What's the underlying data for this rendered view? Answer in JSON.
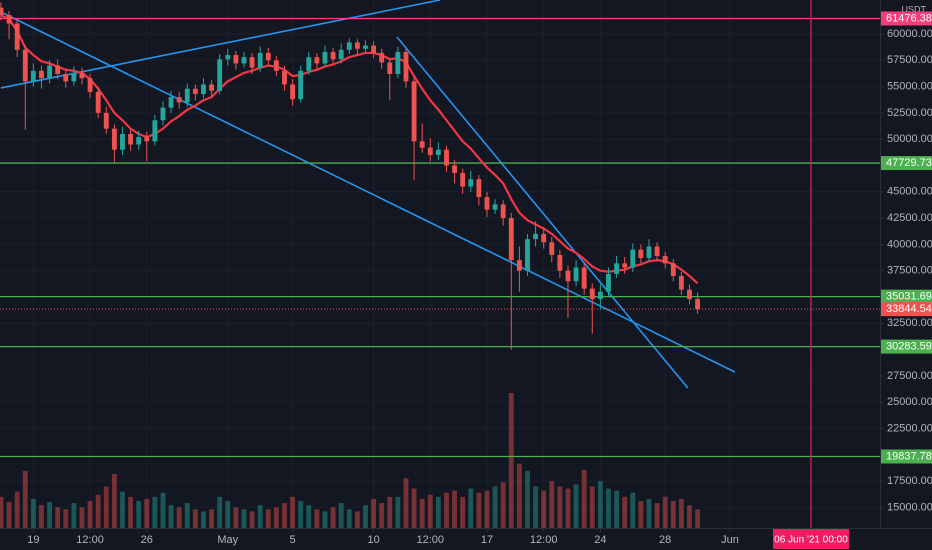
{
  "chart_data": {
    "type": "candlestick",
    "currency": "USDT",
    "x": [
      0,
      0.5,
      1,
      1.5,
      2,
      2.5,
      3,
      3.5,
      4,
      4.5,
      5,
      5.5,
      6,
      6.5,
      7,
      7.5,
      8,
      8.5,
      9,
      9.5,
      10,
      10.5,
      11,
      11.5,
      12,
      12.5,
      13,
      13.5,
      14,
      14.5,
      15,
      15.5,
      16,
      16.5,
      17,
      17.5,
      18,
      18.5,
      19,
      19.5,
      20,
      20.5,
      21,
      21.5,
      22,
      22.5,
      23,
      23.5,
      24,
      24.5,
      25,
      25.5,
      26,
      26.5,
      27,
      27.5,
      28,
      28.5,
      29,
      29.5,
      30,
      30.5,
      31,
      31.5,
      32,
      32.5,
      33,
      33.5,
      34,
      34.5,
      35,
      35.5,
      36,
      36.5,
      37,
      37.5,
      38,
      38.5,
      39,
      39.5,
      40,
      40.5,
      41,
      41.5,
      42,
      42.5,
      43
    ],
    "ohlc": [
      [
        62500,
        63000,
        61300,
        61800
      ],
      [
        61800,
        62200,
        59500,
        61000
      ],
      [
        61000,
        61400,
        57800,
        58500
      ],
      [
        58500,
        59000,
        50900,
        55500
      ],
      [
        55500,
        57200,
        55000,
        56500
      ],
      [
        56500,
        57000,
        54800,
        55800
      ],
      [
        55800,
        57500,
        55300,
        57000
      ],
      [
        57000,
        57600,
        55700,
        56200
      ],
      [
        56200,
        56700,
        54900,
        55500
      ],
      [
        55500,
        56900,
        55100,
        56300
      ],
      [
        56300,
        56800,
        55200,
        55800
      ],
      [
        55800,
        56200,
        53900,
        54500
      ],
      [
        54500,
        55000,
        52000,
        52500
      ],
      [
        52500,
        53100,
        50500,
        51000
      ],
      [
        51000,
        51400,
        47800,
        49000
      ],
      [
        49000,
        51200,
        48500,
        50500
      ],
      [
        50500,
        51000,
        48900,
        49500
      ],
      [
        49500,
        50800,
        49000,
        50200
      ],
      [
        50200,
        50700,
        47900,
        49800
      ],
      [
        49800,
        52300,
        49400,
        51800
      ],
      [
        51800,
        53600,
        51300,
        53000
      ],
      [
        53000,
        54600,
        52500,
        54000
      ],
      [
        54000,
        54500,
        52900,
        53500
      ],
      [
        53500,
        55300,
        53100,
        54800
      ],
      [
        54800,
        55200,
        53700,
        54300
      ],
      [
        54300,
        55800,
        53900,
        55200
      ],
      [
        55200,
        55600,
        54000,
        54600
      ],
      [
        54600,
        58100,
        54300,
        57600
      ],
      [
        57600,
        58600,
        57000,
        58000
      ],
      [
        58000,
        58400,
        56600,
        57200
      ],
      [
        57200,
        58300,
        56800,
        57800
      ],
      [
        57800,
        58200,
        56200,
        56800
      ],
      [
        56800,
        58800,
        56400,
        58200
      ],
      [
        58200,
        58700,
        57000,
        57500
      ],
      [
        57500,
        57900,
        56000,
        56500
      ],
      [
        56500,
        57000,
        54600,
        55200
      ],
      [
        55200,
        55700,
        53200,
        53800
      ],
      [
        53800,
        57000,
        53500,
        56500
      ],
      [
        56500,
        58300,
        56100,
        57800
      ],
      [
        57800,
        58200,
        56700,
        57200
      ],
      [
        57200,
        58900,
        56900,
        58300
      ],
      [
        58300,
        58700,
        57100,
        57600
      ],
      [
        57600,
        59100,
        57200,
        58500
      ],
      [
        58500,
        59600,
        58100,
        59200
      ],
      [
        59200,
        59500,
        58000,
        58600
      ],
      [
        58600,
        59400,
        58200,
        58900
      ],
      [
        58900,
        59300,
        57700,
        58200
      ],
      [
        58200,
        58600,
        56700,
        57300
      ],
      [
        57300,
        57700,
        53700,
        56200
      ],
      [
        56200,
        58800,
        55800,
        58300
      ],
      [
        58300,
        58600,
        54900,
        55500
      ],
      [
        55500,
        56000,
        46100,
        49800
      ],
      [
        49800,
        51500,
        48700,
        49200
      ],
      [
        49200,
        50100,
        47900,
        48500
      ],
      [
        48500,
        49700,
        48000,
        49000
      ],
      [
        49000,
        49400,
        46900,
        47500
      ],
      [
        47500,
        48000,
        45800,
        46800
      ],
      [
        46800,
        47200,
        44800,
        45500
      ],
      [
        45500,
        47000,
        45000,
        46200
      ],
      [
        46200,
        46600,
        43700,
        44500
      ],
      [
        44500,
        45000,
        42600,
        43300
      ],
      [
        43300,
        44300,
        42900,
        43800
      ],
      [
        43800,
        44200,
        41800,
        42500
      ],
      [
        42500,
        43000,
        30000,
        38500
      ],
      [
        38500,
        39800,
        35500,
        37500
      ],
      [
        37500,
        41000,
        37000,
        40500
      ],
      [
        40500,
        42200,
        39800,
        41000
      ],
      [
        41000,
        41600,
        39600,
        40200
      ],
      [
        40200,
        40700,
        38300,
        39000
      ],
      [
        39000,
        39500,
        36800,
        37500
      ],
      [
        37500,
        38000,
        33000,
        36500
      ],
      [
        36500,
        38500,
        36000,
        37800
      ],
      [
        37800,
        38200,
        35200,
        35800
      ],
      [
        35800,
        36300,
        31500,
        34800
      ],
      [
        34800,
        36200,
        33800,
        35500
      ],
      [
        35500,
        37800,
        35000,
        37200
      ],
      [
        37200,
        38900,
        36800,
        38200
      ],
      [
        38200,
        38800,
        37200,
        37800
      ],
      [
        37800,
        40100,
        37400,
        39500
      ],
      [
        39500,
        40000,
        38200,
        38700
      ],
      [
        38700,
        40500,
        38300,
        39800
      ],
      [
        39800,
        40200,
        38400,
        38900
      ],
      [
        38900,
        39300,
        37700,
        38200
      ],
      [
        38200,
        38600,
        36500,
        37000
      ],
      [
        37000,
        37400,
        35200,
        35700
      ],
      [
        35700,
        36200,
        34300,
        34800
      ],
      [
        34800,
        35400,
        33400,
        33844.54
      ]
    ],
    "volume": [
      30,
      25,
      35,
      55,
      28,
      22,
      25,
      20,
      18,
      24,
      20,
      26,
      32,
      40,
      52,
      35,
      30,
      26,
      28,
      30,
      34,
      22,
      20,
      24,
      18,
      16,
      18,
      30,
      26,
      20,
      18,
      16,
      22,
      18,
      20,
      24,
      30,
      26,
      22,
      18,
      16,
      20,
      24,
      18,
      16,
      22,
      28,
      24,
      30,
      30,
      48,
      38,
      28,
      32,
      30,
      34,
      36,
      30,
      38,
      34,
      36,
      40,
      44,
      130,
      62,
      55,
      40,
      36,
      45,
      40,
      38,
      42,
      56,
      40,
      45,
      38,
      36,
      30,
      34,
      26,
      28,
      24,
      30,
      26,
      28,
      22,
      18
    ],
    "up_color": "#26a69a",
    "down_color": "#ef5350",
    "series": [
      {
        "color": "#f23645",
        "values": [
          61800,
          61400,
          60300,
          58700,
          58000,
          57400,
          57200,
          56900,
          56600,
          56500,
          56300,
          55700,
          54800,
          53700,
          52500,
          51800,
          51000,
          50500,
          50200,
          50500,
          51000,
          51700,
          52200,
          52800,
          53200,
          53700,
          54000,
          54800,
          55500,
          55900,
          56300,
          56500,
          56800,
          57000,
          56900,
          56600,
          56000,
          56100,
          56400,
          56600,
          56900,
          57100,
          57400,
          57800,
          58000,
          58200,
          58200,
          58000,
          57600,
          57700,
          57300,
          56000,
          54800,
          53700,
          52800,
          51800,
          50800,
          49800,
          49100,
          48200,
          47300,
          46600,
          45800,
          44300,
          43000,
          42300,
          41900,
          41500,
          41000,
          40300,
          39600,
          39200,
          38600,
          37900,
          37500,
          37400,
          37500,
          37600,
          37900,
          38100,
          38400,
          38500,
          38400,
          38100,
          37600,
          37000,
          36300
        ]
      }
    ],
    "trendlines": [
      {
        "color": "#2196f3",
        "x": [
          0,
          27.1
        ],
        "y": [
          54870,
          63230
        ]
      },
      {
        "color": "#2196f3",
        "x": [
          0,
          45.3
        ],
        "y": [
          62090,
          27870
        ]
      },
      {
        "color": "#2196f3",
        "x": [
          24.44,
          42.4
        ],
        "y": [
          59710,
          26350
        ]
      }
    ],
    "levels": [
      {
        "value": 61476.38,
        "color": "#f23f7c"
      },
      {
        "value": 47729.73,
        "color": "#4caf50"
      },
      {
        "value": 35031.69,
        "color": "#4caf50"
      },
      {
        "value": 30283.59,
        "color": "#4caf50"
      },
      {
        "value": 19837.78,
        "color": "#4caf50"
      }
    ],
    "vline": {
      "x": 50,
      "label": "06 Jun '21  00:00",
      "color": "#e91e63"
    },
    "xlim": [
      -0.06,
      54.26
    ],
    "ylim": [
      13040,
      63232
    ],
    "xticks": [
      {
        "value": 2,
        "label": "19"
      },
      {
        "value": 5.5,
        "label": "12:00"
      },
      {
        "value": 9,
        "label": "26"
      },
      {
        "value": 14,
        "label": "May"
      },
      {
        "value": 18,
        "label": "5"
      },
      {
        "value": 23,
        "label": "10"
      },
      {
        "value": 26.5,
        "label": "12:00"
      },
      {
        "value": 30,
        "label": "17"
      },
      {
        "value": 33.5,
        "label": "12:00"
      },
      {
        "value": 37,
        "label": "24"
      },
      {
        "value": 41,
        "label": "28"
      },
      {
        "value": 45,
        "label": "Jun"
      }
    ],
    "yticks": [
      {
        "value": 60000,
        "label": "60000.00"
      },
      {
        "value": 57500,
        "label": "57500.00"
      },
      {
        "value": 55000,
        "label": "55000.00"
      },
      {
        "value": 52500,
        "label": "52500.00"
      },
      {
        "value": 50000,
        "label": "50000.00"
      },
      {
        "value": 45000,
        "label": "45000.00"
      },
      {
        "value": 42500,
        "label": "42500.00"
      },
      {
        "value": 40000,
        "label": "40000.00"
      },
      {
        "value": 37500,
        "label": "37500.00"
      },
      {
        "value": 32500,
        "label": "32500.00"
      },
      {
        "value": 27500,
        "label": "27500.00"
      },
      {
        "value": 25000,
        "label": "25000.00"
      },
      {
        "value": 22500,
        "label": "22500.00"
      },
      {
        "value": 17500,
        "label": "17500.00"
      },
      {
        "value": 15000,
        "label": "15000.00"
      }
    ],
    "grid": true
  }
}
